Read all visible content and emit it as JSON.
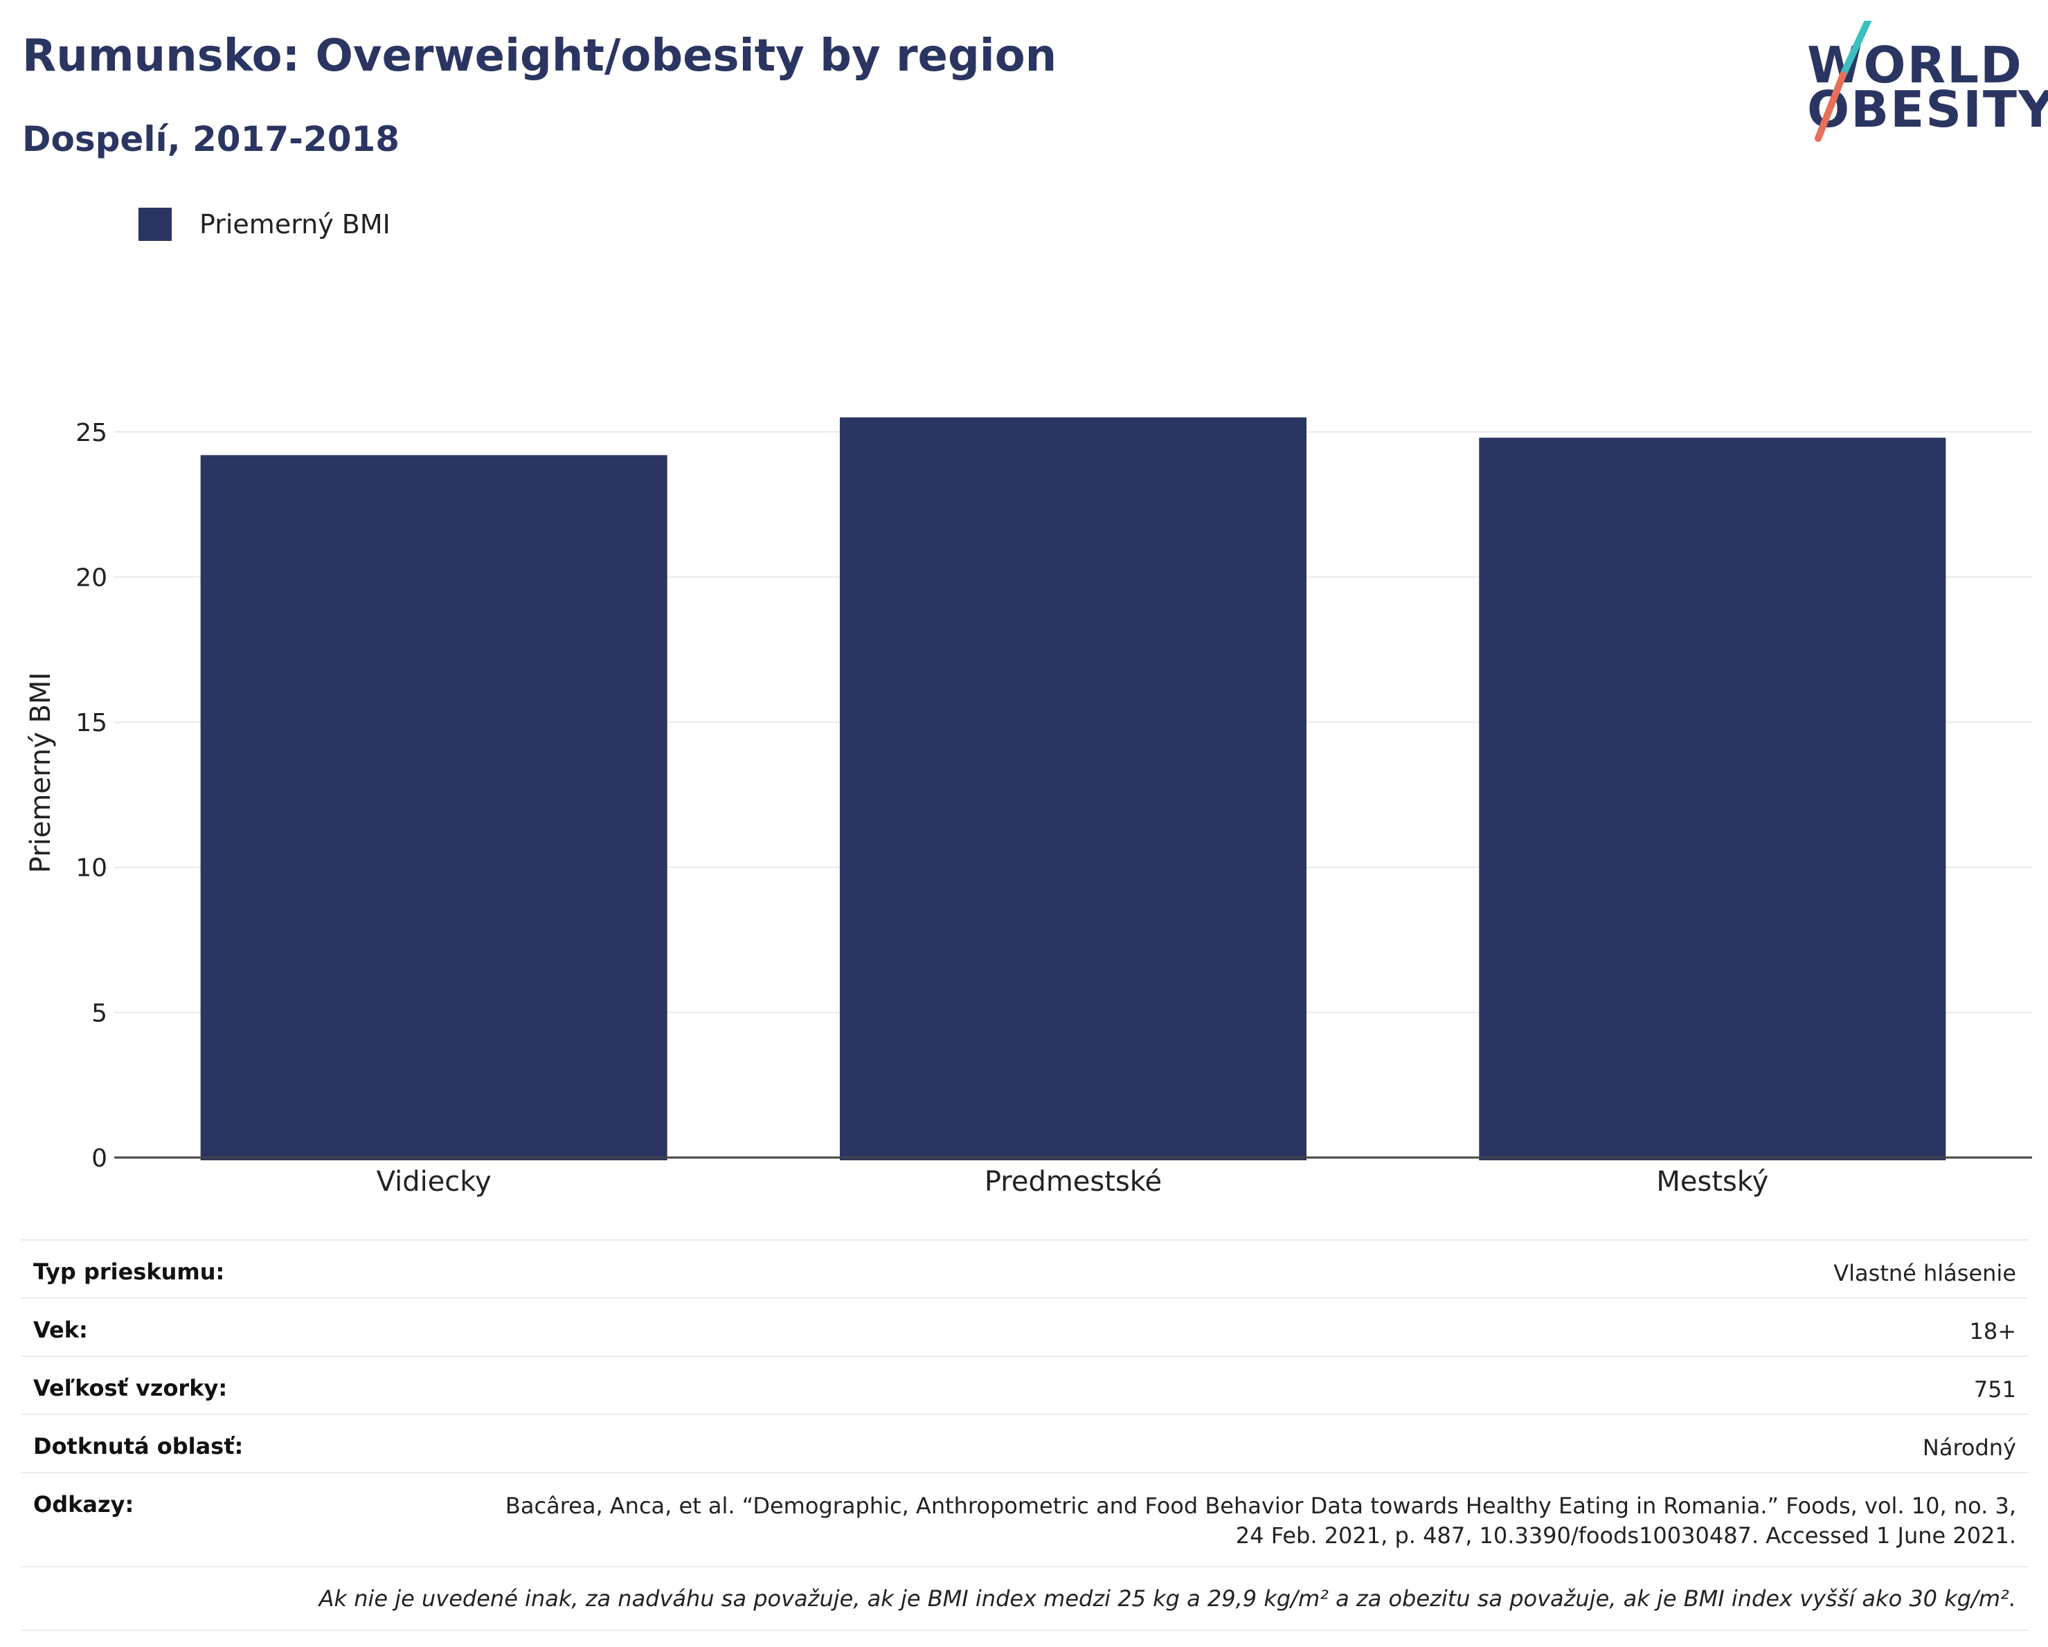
{
  "title": "Rumunsko: Overweight/obesity by region",
  "subtitle": "Dospelí, 2017-2018",
  "logo": {
    "line1": "WORLD",
    "line2": "OBESITY",
    "accent_teal": "#3bbfc0",
    "accent_coral": "#e8705a"
  },
  "legend": {
    "label": "Priemerný BMI",
    "color": "#2b3562"
  },
  "chart_data": {
    "type": "bar",
    "categories": [
      "Vidiecky",
      "Predmestské",
      "Mestský"
    ],
    "series": [
      {
        "name": "Priemerný BMI",
        "values": [
          24.2,
          25.5,
          24.8
        ],
        "color": "#2b3562"
      }
    ],
    "ylabel": "Priemerný BMI",
    "xlabel": "",
    "ylim": [
      0,
      27
    ],
    "yticks": [
      0,
      5,
      10,
      15,
      20,
      25
    ],
    "grid": true,
    "legend_position": "top-left"
  },
  "info": {
    "rows": [
      {
        "key": "Typ prieskumu:",
        "value": "Vlastné hlásenie"
      },
      {
        "key": "Vek:",
        "value": "18+"
      },
      {
        "key": "Veľkosť vzorky:",
        "value": "751"
      },
      {
        "key": "Dotknutá oblasť:",
        "value": "Národný"
      }
    ],
    "references_key": "Odkazy:",
    "references_line1": "Bacârea, Anca, et al. “Demographic, Anthropometric and Food Behavior Data towards Healthy Eating in Romania.” Foods, vol. 10, no. 3,",
    "references_line2": "24 Feb. 2021, p. 487, 10.3390/foods10030487. Accessed 1 June 2021.",
    "note": "Ak nie je uvedené inak, za nadváhu sa považuje, ak je BMI index medzi 25 kg a 29,9 kg/m² a za obezitu sa považuje, ak je BMI index vyšší ako 30 kg/m²."
  }
}
